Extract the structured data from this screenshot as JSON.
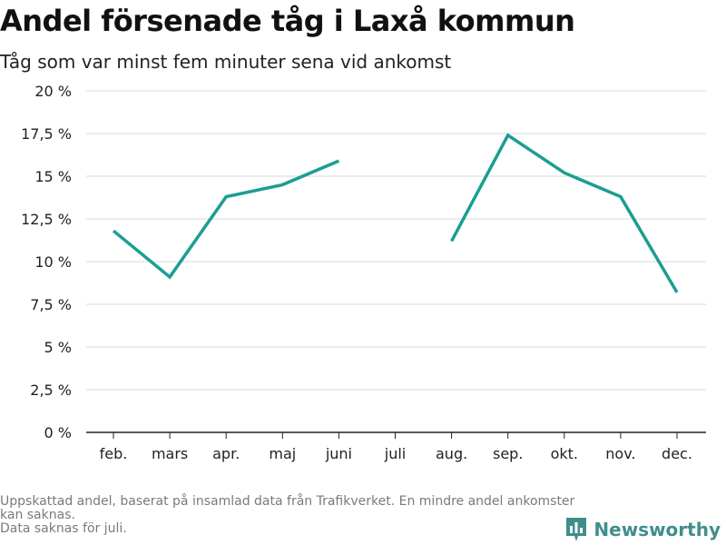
{
  "title": "Andel försenade tåg i Laxå kommun",
  "subtitle": "Tåg som var minst fem minuter sena vid ankomst",
  "footnote": {
    "line1": "Uppskattad andel, baserat på insamlad data från Trafikverket. En mindre andel ankomster kan saknas.",
    "line2": "Data saknas för juli."
  },
  "brand": {
    "name": "Newsworthy",
    "icon": "newsworthy-logo-icon"
  },
  "colors": {
    "line": "#1b9e92",
    "grid": "#d9d9d9",
    "axis": "#222222"
  },
  "chart_data": {
    "type": "line",
    "categories": [
      "feb.",
      "mars",
      "apr.",
      "maj",
      "juni",
      "juli",
      "aug.",
      "sep.",
      "okt.",
      "nov.",
      "dec."
    ],
    "series": [
      {
        "values": [
          11.8,
          9.1,
          13.8,
          14.5,
          15.9,
          null,
          11.2,
          17.4,
          15.2,
          13.8,
          8.2
        ]
      }
    ],
    "ylim": [
      0,
      20
    ],
    "yticks": [
      0,
      2.5,
      5,
      7.5,
      10,
      12.5,
      15,
      17.5,
      20
    ],
    "ytick_labels": [
      "0 %",
      "2,5 %",
      "5 %",
      "7,5 %",
      "10 %",
      "12,5 %",
      "15 %",
      "17,5 %",
      "20 %"
    ],
    "grid": true,
    "xlabel": "",
    "ylabel": ""
  }
}
